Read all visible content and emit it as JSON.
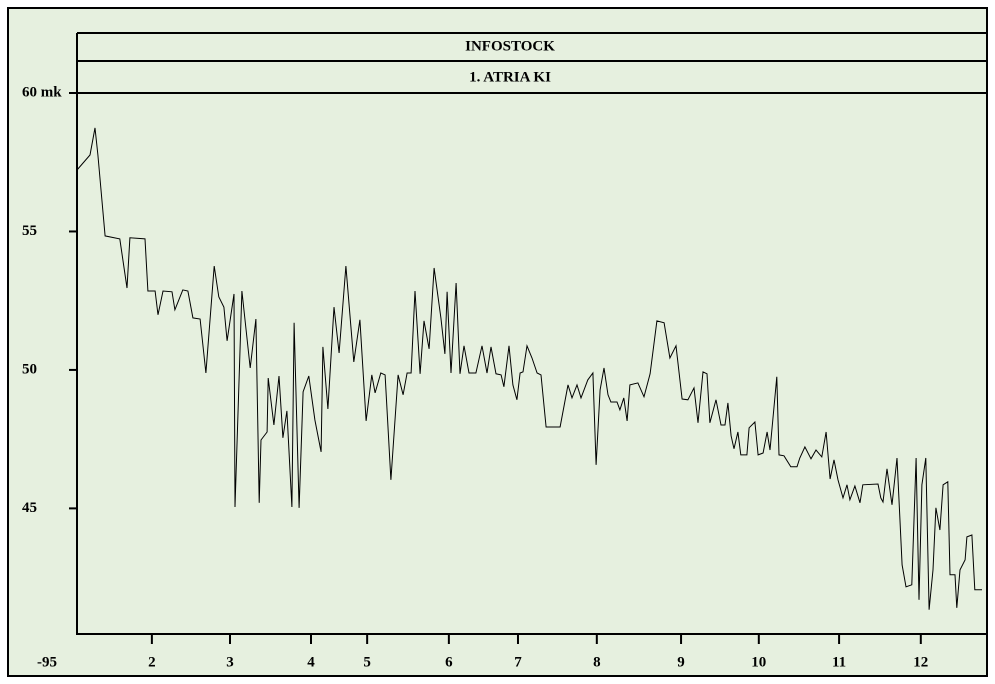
{
  "chart_data": {
    "type": "line",
    "title": "INFOSTOCK",
    "subtitle": "1. ATRIA KI",
    "x_start_label": "-95",
    "color": "#000000",
    "background": "#e6f0df",
    "x": [
      0,
      3.6,
      5.0,
      5.8,
      7.8,
      11.9,
      13.9,
      14.7,
      18.9,
      19.7,
      21.7,
      22.5,
      23.9,
      26.4,
      27.2,
      29.4,
      30.8,
      32.2,
      34.2,
      35.8,
      38.1,
      39.4,
      40.8,
      41.7,
      43.6,
      43.9,
      45.8,
      48.1,
      49.7,
      50.6,
      51.1,
      52.8,
      53.1,
      54.7,
      56.1,
      57.2,
      58.3,
      59.7,
      60.3,
      61.7,
      62.8,
      64.4,
      66.1,
      67.8,
      68.3,
      69.7,
      71.4,
      72.8,
      74.7,
      76.9,
      78.6,
      80.3,
      81.9,
      82.8,
      84.4,
      85.6,
      87.2,
      89.2,
      90.6,
      91.7,
      92.8,
      93.9,
      95.3,
      96.4,
      97.8,
      99.2,
      101.1,
      102.2,
      102.8,
      103.9,
      105.3,
      106.4,
      107.5,
      108.9,
      110.8,
      112.5,
      113.9,
      115.0,
      116.4,
      117.8,
      118.6,
      120.0,
      121.1,
      122.2,
      123.1,
      123.9,
      125.0,
      126.4,
      127.8,
      128.9,
      130.3,
      134.2,
      136.4,
      137.5,
      138.9,
      140.0,
      141.9,
      143.3,
      144.2,
      145.3,
      146.4,
      147.5,
      148.3,
      150.0,
      150.8,
      151.9,
      152.8,
      153.6,
      155.8,
      157.5,
      159.2,
      161.1,
      163.1,
      164.7,
      166.4,
      168.1,
      169.7,
      171.4,
      172.5,
      173.9,
      175.0,
      175.8,
      177.5,
      178.9,
      180.0,
      180.8,
      181.7,
      182.5,
      183.6,
      184.4,
      186.1,
      186.7,
      188.3,
      189.2,
      190.6,
      191.7,
      192.5,
      193.3,
      194.4,
      195.0,
      196.4,
      198.3,
      200.0,
      200.8,
      202.2,
      203.9,
      205.3,
      206.9,
      208.1,
      209.2,
      210.3,
      211.4,
      212.8,
      213.9,
      214.7,
      216.1,
      217.5,
      218.3,
      222.5,
      223.3,
      223.9,
      225.0,
      226.4,
      227.8,
      229.2,
      230.3,
      231.9,
      233.1,
      233.9,
      234.7,
      235.8,
      236.7,
      237.8,
      238.6,
      239.7,
      240.6,
      241.9,
      242.5,
      243.9,
      244.4,
      245.3,
      246.7,
      247.2,
      248.6,
      249.4,
      251.4
    ],
    "y": [
      57.22,
      57.76,
      58.74,
      57.76,
      54.84,
      54.73,
      52.96,
      54.77,
      54.73,
      52.85,
      52.85,
      51.99,
      52.85,
      52.82,
      52.17,
      52.89,
      52.85,
      51.88,
      51.84,
      49.89,
      53.75,
      52.64,
      52.27,
      51.05,
      52.74,
      45.05,
      52.85,
      50.07,
      51.84,
      45.2,
      47.47,
      47.76,
      49.71,
      48.01,
      49.78,
      47.55,
      48.52,
      45.05,
      51.7,
      45.02,
      49.21,
      49.78,
      48.19,
      47.04,
      50.83,
      48.59,
      52.27,
      50.61,
      53.75,
      50.29,
      51.81,
      48.16,
      49.82,
      49.17,
      49.89,
      49.82,
      46.03,
      49.82,
      49.1,
      49.89,
      49.89,
      52.85,
      49.86,
      51.77,
      50.76,
      53.68,
      51.88,
      50.58,
      52.82,
      49.89,
      53.14,
      49.86,
      50.87,
      49.89,
      49.89,
      50.87,
      49.89,
      50.83,
      49.86,
      49.82,
      49.39,
      50.87,
      49.46,
      48.92,
      49.89,
      49.93,
      50.87,
      50.43,
      49.89,
      49.82,
      47.94,
      47.94,
      49.46,
      48.99,
      49.46,
      48.99,
      49.64,
      49.89,
      46.57,
      49.28,
      50.07,
      49.1,
      48.84,
      48.84,
      48.56,
      48.99,
      48.16,
      49.46,
      49.53,
      49.03,
      49.86,
      51.77,
      51.7,
      50.43,
      50.87,
      48.95,
      48.92,
      49.35,
      48.09,
      49.93,
      49.86,
      48.09,
      48.92,
      48.01,
      48.01,
      48.81,
      47.62,
      47.15,
      47.76,
      46.93,
      46.93,
      47.91,
      48.12,
      46.93,
      47.0,
      47.76,
      47.11,
      48.19,
      49.75,
      46.93,
      46.9,
      46.5,
      46.5,
      46.82,
      47.22,
      46.79,
      47.11,
      46.86,
      47.76,
      46.06,
      46.75,
      46.03,
      45.38,
      45.85,
      45.31,
      45.81,
      45.2,
      45.85,
      45.88,
      45.38,
      45.23,
      46.43,
      45.13,
      46.82,
      42.96,
      42.17,
      42.24,
      46.82,
      41.7,
      45.85,
      46.82,
      41.34,
      42.78,
      45.02,
      44.22,
      45.85,
      45.96,
      42.6,
      42.6,
      41.41,
      42.78,
      43.14,
      43.97,
      44.04,
      42.06,
      42.06
    ],
    "xlim": [
      0,
      251.4
    ],
    "ylim": [
      40.5,
      60
    ],
    "xticks": [
      {
        "value": 20.8,
        "label": "2"
      },
      {
        "value": 42.5,
        "label": "3"
      },
      {
        "value": 65.0,
        "label": "4"
      },
      {
        "value": 80.6,
        "label": "5"
      },
      {
        "value": 103.3,
        "label": "6"
      },
      {
        "value": 122.5,
        "label": "7"
      },
      {
        "value": 144.4,
        "label": "8"
      },
      {
        "value": 167.8,
        "label": "9"
      },
      {
        "value": 189.4,
        "label": "10"
      },
      {
        "value": 211.7,
        "label": "11"
      },
      {
        "value": 234.4,
        "label": "12"
      }
    ],
    "yticks": [
      {
        "value": 60,
        "label": "60 mk"
      },
      55,
      50,
      45
    ]
  }
}
